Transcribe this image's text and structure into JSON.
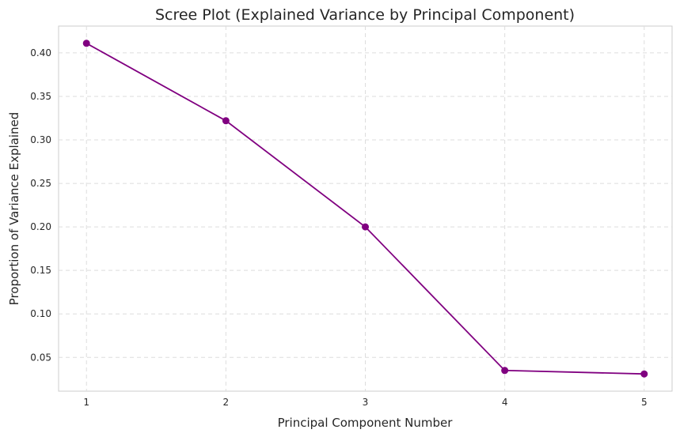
{
  "chart_data": {
    "type": "line",
    "title": "Scree Plot (Explained Variance by Principal Component)",
    "xlabel": "Principal Component Number",
    "ylabel": "Proportion of Variance Explained",
    "x": [
      1,
      2,
      3,
      4,
      5
    ],
    "xticks": [
      "1",
      "2",
      "3",
      "4",
      "5"
    ],
    "yticks": [
      "0.05",
      "0.10",
      "0.15",
      "0.20",
      "0.25",
      "0.30",
      "0.35",
      "0.40"
    ],
    "series": [
      {
        "values": [
          0.411,
          0.322,
          0.2,
          0.035,
          0.031
        ],
        "color": "#800080",
        "marker": "circle"
      }
    ],
    "xlim": [
      0.8,
      5.2
    ],
    "ylim": [
      0.0112,
      0.4308
    ],
    "grid": true
  }
}
